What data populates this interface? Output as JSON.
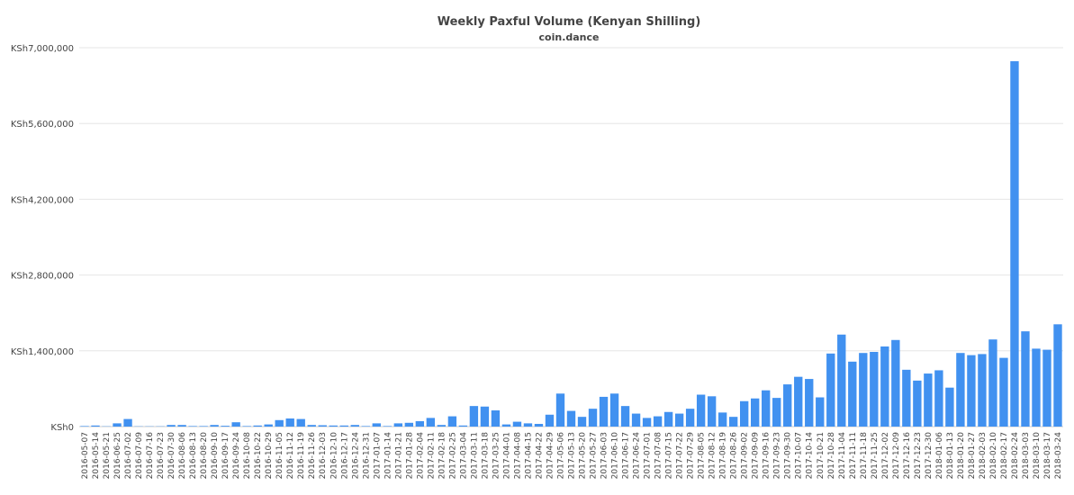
{
  "chart_data": {
    "type": "bar",
    "title": "Weekly Paxful Volume (Kenyan Shilling)",
    "subtitle": "coin.dance",
    "xlabel": "",
    "ylabel": "",
    "ylim": [
      0,
      7000000
    ],
    "yticks": [
      0,
      1400000,
      2800000,
      4200000,
      5600000,
      7000000
    ],
    "ytick_labels": [
      "KSh0",
      "KSh1,400,000",
      "KSh2,800,000",
      "KSh4,200,000",
      "KSh5,600,000",
      "KSh7,000,000"
    ],
    "grid": true,
    "legend": false,
    "bar_color": "#4191f0",
    "categories": [
      "2016-05-07",
      "2016-05-14",
      "2016-05-21",
      "2016-06-25",
      "2016-07-02",
      "2016-07-09",
      "2016-07-16",
      "2016-07-23",
      "2016-07-30",
      "2016-08-06",
      "2016-08-13",
      "2016-08-20",
      "2016-09-10",
      "2016-09-17",
      "2016-09-24",
      "2016-10-08",
      "2016-10-22",
      "2016-10-29",
      "2016-11-05",
      "2016-11-12",
      "2016-11-19",
      "2016-11-26",
      "2016-12-03",
      "2016-12-10",
      "2016-12-17",
      "2016-12-24",
      "2016-12-31",
      "2017-01-07",
      "2017-01-14",
      "2017-01-21",
      "2017-01-28",
      "2017-02-04",
      "2017-02-11",
      "2017-02-18",
      "2017-02-25",
      "2017-03-04",
      "2017-03-11",
      "2017-03-18",
      "2017-03-25",
      "2017-04-01",
      "2017-04-08",
      "2017-04-15",
      "2017-04-22",
      "2017-04-29",
      "2017-05-06",
      "2017-05-13",
      "2017-05-20",
      "2017-05-27",
      "2017-06-03",
      "2017-06-10",
      "2017-06-17",
      "2017-06-24",
      "2017-07-01",
      "2017-07-08",
      "2017-07-15",
      "2017-07-22",
      "2017-07-29",
      "2017-08-05",
      "2017-08-12",
      "2017-08-19",
      "2017-08-26",
      "2017-09-02",
      "2017-09-09",
      "2017-09-16",
      "2017-09-23",
      "2017-09-30",
      "2017-10-07",
      "2017-10-14",
      "2017-10-21",
      "2017-10-28",
      "2017-11-04",
      "2017-11-11",
      "2017-11-18",
      "2017-11-25",
      "2017-12-02",
      "2017-12-09",
      "2017-12-16",
      "2017-12-23",
      "2017-12-30",
      "2018-01-06",
      "2018-01-13",
      "2018-01-20",
      "2018-01-27",
      "2018-02-03",
      "2018-02-10",
      "2018-02-17",
      "2018-02-24",
      "2018-03-03",
      "2018-03-10",
      "2018-03-17",
      "2018-03-24"
    ],
    "values": [
      10000,
      20000,
      5000,
      60000,
      140000,
      5000,
      5000,
      5000,
      30000,
      30000,
      10000,
      10000,
      30000,
      15000,
      80000,
      10000,
      20000,
      40000,
      120000,
      150000,
      140000,
      30000,
      25000,
      20000,
      20000,
      30000,
      10000,
      60000,
      10000,
      60000,
      70000,
      100000,
      160000,
      30000,
      190000,
      20000,
      380000,
      370000,
      300000,
      40000,
      90000,
      60000,
      50000,
      220000,
      610000,
      290000,
      180000,
      330000,
      550000,
      610000,
      380000,
      240000,
      160000,
      190000,
      270000,
      240000,
      330000,
      590000,
      560000,
      260000,
      180000,
      470000,
      520000,
      670000,
      530000,
      780000,
      920000,
      880000,
      540000,
      1350000,
      1700000,
      1200000,
      1360000,
      1380000,
      1480000,
      1600000,
      1050000,
      850000,
      980000,
      1040000,
      720000,
      1360000,
      1320000,
      1340000,
      1610000,
      1270000,
      6750000,
      1760000,
      1440000,
      1420000,
      1890000
    ]
  }
}
